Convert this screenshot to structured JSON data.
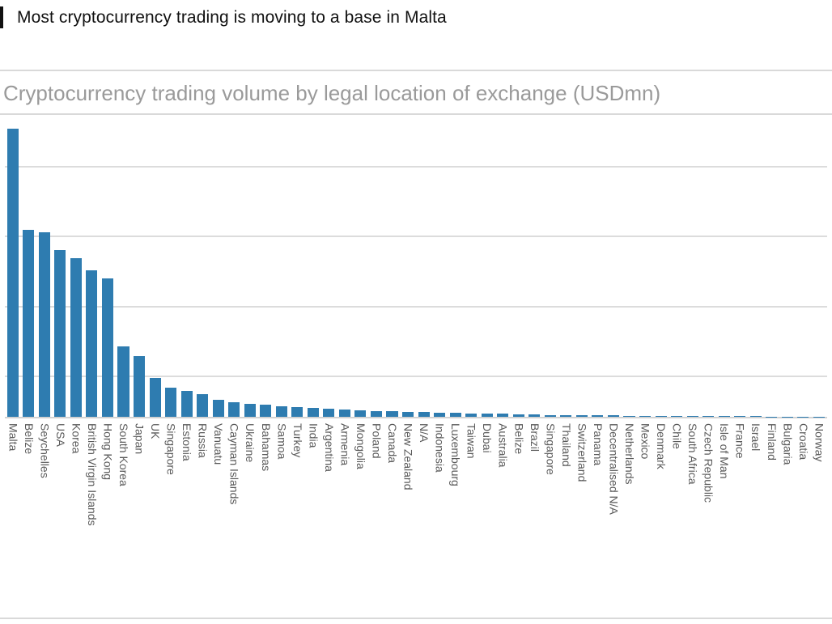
{
  "page": {
    "header": "Most cryptocurrency trading is moving to a base in Malta"
  },
  "chart_data": {
    "type": "bar",
    "title": "Cryptocurrency trading volume by legal location of exchange (USDmn)",
    "xlabel": "",
    "ylabel": "",
    "categories": [
      "Malta",
      "Belize",
      "Seychelles",
      "USA",
      "Korea",
      "British Virgin Islands",
      "Hong Kong",
      "South Korea",
      "Japan",
      "UK",
      "Singapore",
      "Estonia",
      "Russia",
      "Vanuatu",
      "Cayman Islands",
      "Ukraine",
      "Bahamas",
      "Samoa",
      "Turkey",
      "India",
      "Argentina",
      "Armenia",
      "Mongolia",
      "Poland",
      "Canada",
      "New Zealand",
      "N/A",
      "Indonesia",
      "Luxembourg",
      "Taiwan",
      "Dubai",
      "Australia",
      "Belize",
      "Brazil",
      "Singapore",
      "Thailand",
      "Switzerland",
      "Panama",
      "Decentralised N/A",
      "Netherlands",
      "Mexico",
      "Denmark",
      "Chile",
      "South Africa",
      "Czech Republic",
      "Isle of Man",
      "France",
      "Israel",
      "Finland",
      "Bulgaria",
      "Croatia",
      "Norway"
    ],
    "values": [
      100,
      65,
      64,
      58,
      55,
      51,
      48,
      24.5,
      21,
      13.5,
      10,
      9,
      8,
      6,
      5.2,
      4.6,
      4.1,
      3.7,
      3.3,
      3.0,
      2.8,
      2.5,
      2.3,
      2.1,
      1.9,
      1.8,
      1.6,
      1.5,
      1.35,
      1.2,
      1.1,
      1.0,
      0.9,
      0.8,
      0.7,
      0.65,
      0.55,
      0.5,
      0.45,
      0.4,
      0.35,
      0.3,
      0.28,
      0.25,
      0.22,
      0.2,
      0.18,
      0.15,
      0.12,
      0.1,
      0.08,
      0.06
    ],
    "ylim": [
      0,
      101.5
    ],
    "grid": "horizontal",
    "legend": "none",
    "note": "No y-axis tick labels are visible in the chart; values are relative bar heights normalized so Malta = 100."
  },
  "colors": {
    "bar": "#2e7cb0",
    "chart_title": "#9a9a9a",
    "gridline": "#dcdcdc",
    "heading": "#111111",
    "axis_label": "#5a5a5a"
  }
}
